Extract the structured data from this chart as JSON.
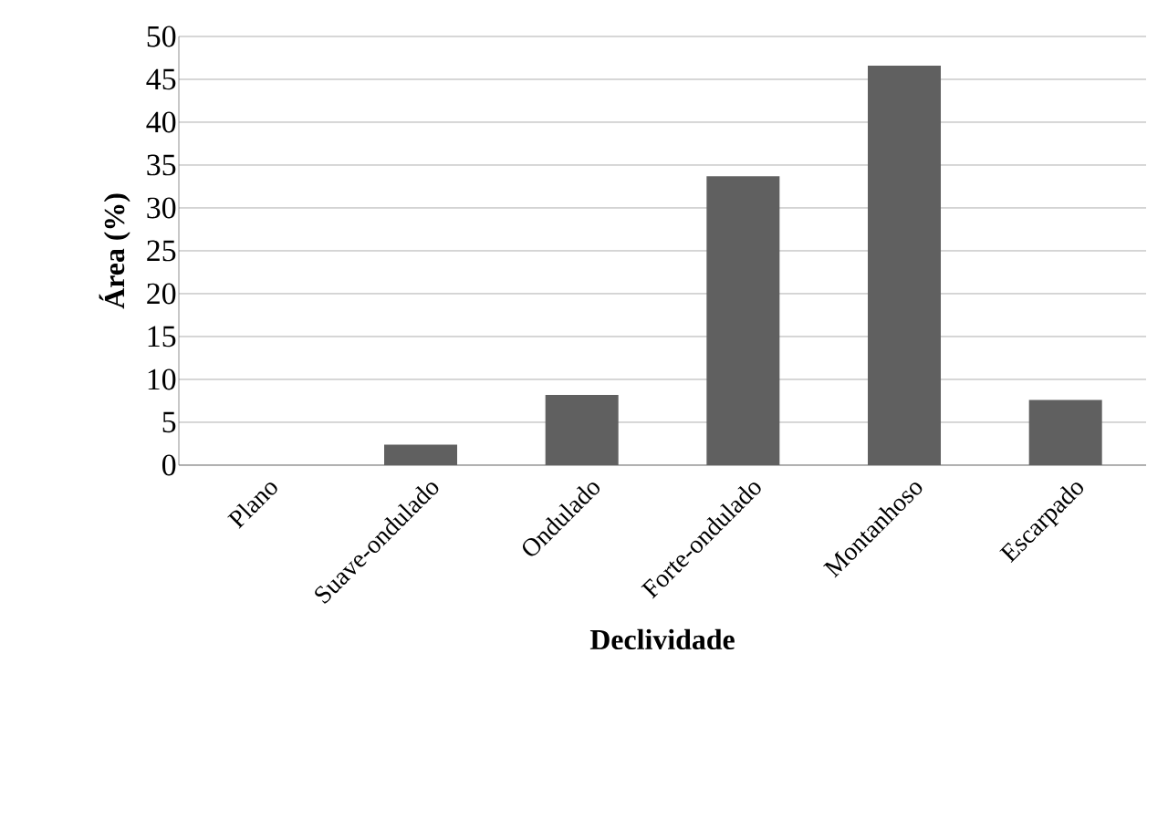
{
  "chart_data": {
    "type": "bar",
    "xlabel": "Declividade",
    "ylabel": "Área (%)",
    "categories": [
      "Plano",
      "Suave-ondulado",
      "Ondulado",
      "Forte-ondulado",
      "Montanhoso",
      "Escarpado"
    ],
    "values": [
      0,
      2.4,
      8.2,
      33.7,
      46.6,
      7.6
    ],
    "color": "#606060",
    "ylim": [
      0,
      50
    ],
    "yticks": [
      0,
      5,
      10,
      15,
      20,
      25,
      30,
      35,
      40,
      45,
      50
    ],
    "grid": "y"
  }
}
